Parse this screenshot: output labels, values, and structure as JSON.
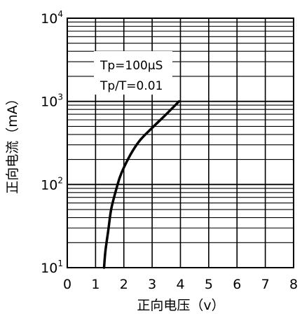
{
  "chart_data": {
    "type": "line",
    "xlabel": "正向电压（v）",
    "ylabel": "正向电流（mA）",
    "xlim": [
      0,
      8
    ],
    "ylim": [
      10,
      10000
    ],
    "yscale": "log",
    "grid": true,
    "x_ticks": [
      "0",
      "1",
      "2",
      "3",
      "4",
      "5",
      "6",
      "7",
      "8"
    ],
    "y_ticks": [
      {
        "base": "10",
        "exp": "1",
        "value": 10
      },
      {
        "base": "10",
        "exp": "2",
        "value": 100
      },
      {
        "base": "10",
        "exp": "3",
        "value": 1000
      },
      {
        "base": "10",
        "exp": "4",
        "value": 10000
      }
    ],
    "annotations": [
      "Tp=100μS",
      "Tp/T=0.01"
    ],
    "series": [
      {
        "x": [
          1.3,
          1.35,
          1.45,
          1.55,
          1.7,
          1.85,
          2.0,
          2.3,
          2.6,
          3.0,
          3.5,
          3.95
        ],
        "y": [
          10,
          16,
          28,
          50,
          80,
          120,
          160,
          250,
          350,
          480,
          700,
          1000
        ]
      }
    ]
  }
}
